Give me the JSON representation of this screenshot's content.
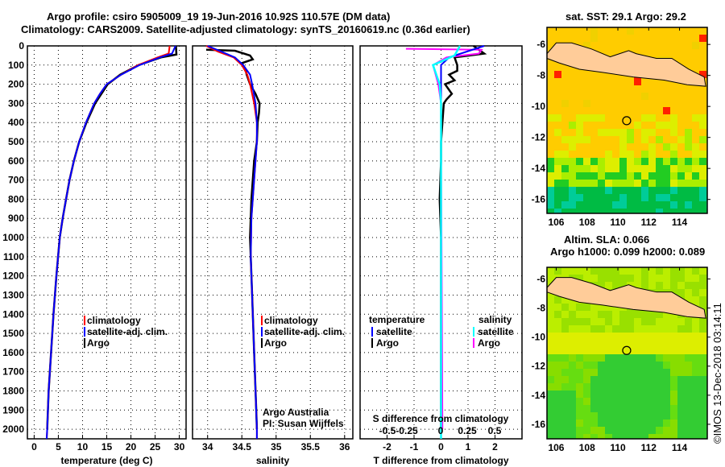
{
  "title_line1": "Argo profile: csiro 5905009_19 19-Jun-2016 10.92S 110.57E (DM data)",
  "title_line2": "Climatology: CARS2009. Satellite-adjusted climatology: synTS_20160619.nc (0.36d earlier)",
  "watermark": "©IMOS 13-Dec-2018 03:14:11",
  "colors": {
    "climatology": "#ff0000",
    "satellite": "#0000ff",
    "argo": "#000000",
    "sal_satellite": "#00ffff",
    "sal_argo": "#ff00ff",
    "land": "#ffcc99"
  },
  "chart_data": [
    {
      "type": "line",
      "xlabel": "temperature (deg C)",
      "ylabel": "",
      "xlim": [
        -1.4,
        31.4
      ],
      "ylim": [
        2050,
        0
      ],
      "xticks": [
        0,
        5,
        10,
        15,
        20,
        25,
        30
      ],
      "yticks": [
        0,
        100,
        200,
        300,
        400,
        500,
        600,
        700,
        800,
        900,
        1000,
        1100,
        1200,
        1300,
        1400,
        1500,
        1600,
        1700,
        1800,
        1900,
        2000
      ],
      "legend": [
        "climatology",
        "satellite-adj. clim.",
        "Argo"
      ],
      "series": [
        {
          "name": "climatology",
          "depth": [
            0,
            40,
            60,
            100,
            150,
            200,
            250,
            300,
            400,
            500,
            600,
            700,
            800,
            900,
            1000,
            1200,
            1400,
            1600,
            1800,
            2000,
            2050
          ],
          "values": [
            28,
            27.8,
            25.5,
            21.5,
            18,
            15,
            13.6,
            12.4,
            10.7,
            9.3,
            8.2,
            7.3,
            6.6,
            5.9,
            5.3,
            4.6,
            4.0,
            3.5,
            3.0,
            2.7,
            2.6
          ]
        },
        {
          "name": "satellite-adj. clim.",
          "depth": [
            0,
            40,
            60,
            100,
            150,
            200,
            250,
            300,
            400,
            500,
            600,
            700,
            800,
            900,
            1000,
            1200,
            1400,
            1600,
            1800,
            2000,
            2050
          ],
          "values": [
            29.2,
            28.5,
            26,
            21.8,
            18,
            15,
            13.6,
            12.4,
            10.7,
            9.3,
            8.2,
            7.3,
            6.6,
            5.9,
            5.3,
            4.6,
            4.0,
            3.5,
            3.0,
            2.7,
            2.6
          ]
        },
        {
          "name": "Argo",
          "depth": [
            0,
            45,
            60,
            100,
            150,
            200,
            250,
            300,
            400,
            500,
            600,
            700,
            800,
            900,
            1000,
            1200,
            1400,
            1600,
            1800,
            2000
          ],
          "values": [
            29.3,
            29.4,
            26.2,
            21.6,
            17.8,
            15.2,
            13.9,
            12.6,
            10.8,
            9.3,
            8.2,
            7.3,
            6.6,
            5.9,
            5.3,
            4.6,
            4.0,
            3.5,
            3.0,
            2.7
          ]
        }
      ]
    },
    {
      "type": "line",
      "xlabel": "salinity",
      "xlim": [
        33.78,
        36.12
      ],
      "ylim": [
        2050,
        0
      ],
      "xticks": [
        34,
        34.5,
        35,
        35.5,
        36
      ],
      "legend": [
        "climatology",
        "satellite-adj. clim.",
        "Argo"
      ],
      "credit": [
        "Argo Australia",
        "PI: Susan Wijffels"
      ],
      "series": [
        {
          "name": "climatology",
          "depth": [
            0,
            30,
            60,
            100,
            150,
            200,
            300,
            400,
            500,
            700,
            900,
            1100,
            1400,
            1700,
            2000,
            2050
          ],
          "values": [
            33.98,
            34.15,
            34.38,
            34.5,
            34.58,
            34.62,
            34.68,
            34.72,
            34.72,
            34.68,
            34.64,
            34.63,
            34.66,
            34.69,
            34.72,
            34.72
          ]
        },
        {
          "name": "satellite-adj. clim.",
          "depth": [
            0,
            30,
            60,
            100,
            150,
            200,
            300,
            400,
            500,
            700,
            900,
            1100,
            1400,
            1700,
            2000,
            2050
          ],
          "values": [
            34.0,
            34.2,
            34.4,
            34.52,
            34.62,
            34.65,
            34.7,
            34.72,
            34.72,
            34.68,
            34.64,
            34.63,
            34.66,
            34.69,
            34.72,
            34.72
          ]
        },
        {
          "name": "Argo",
          "depth": [
            20,
            25,
            50,
            70,
            90,
            120,
            150,
            200,
            250,
            300,
            350,
            400,
            500,
            600,
            800,
            1000,
            1300,
            1600,
            1900,
            2000
          ],
          "values": [
            33.98,
            34.4,
            34.62,
            34.66,
            34.5,
            34.55,
            34.57,
            34.62,
            34.7,
            34.76,
            34.75,
            34.73,
            34.72,
            34.68,
            34.64,
            34.62,
            34.65,
            34.68,
            34.71,
            34.72
          ]
        }
      ]
    },
    {
      "type": "line",
      "xlabel": "T difference from climatology",
      "xlabel2": "S difference from climatology",
      "xlim": [
        -3,
        3
      ],
      "ylim": [
        2050,
        0
      ],
      "xticks": [
        -2,
        -1,
        0,
        1,
        2
      ],
      "xticks2": [
        "-0.5",
        "-0.25",
        "0",
        "0.25",
        "0.5"
      ],
      "legend_t": {
        "title": "temperature",
        "items": [
          "satellite",
          "Argo"
        ]
      },
      "legend_s": {
        "title": "salinity",
        "items": [
          "satellite",
          "Argo"
        ]
      },
      "series": [
        {
          "name": "T satellite",
          "depth": [
            0,
            60,
            100,
            200,
            300,
            400,
            500,
            700,
            1000,
            2050
          ],
          "values": [
            1.6,
            0.3,
            0,
            0,
            0,
            0,
            0,
            0,
            0,
            0
          ]
        },
        {
          "name": "T Argo",
          "depth": [
            0,
            40,
            60,
            100,
            130,
            150,
            180,
            200,
            250,
            280,
            300,
            400,
            500,
            600,
            800,
            1000,
            1500,
            2000
          ],
          "values": [
            1.2,
            1.6,
            0.5,
            0.6,
            0.6,
            0.3,
            0.5,
            0.15,
            0.4,
            0.2,
            0.1,
            0.05,
            0,
            0.0,
            -0.05,
            0,
            0,
            0
          ]
        },
        {
          "name": "S satellite",
          "depth": [
            0,
            50,
            100,
            200,
            300,
            500,
            2050
          ],
          "values": [
            0.7,
            0.5,
            -0.3,
            -0.05,
            0,
            0,
            0
          ]
        },
        {
          "name": "S Argo",
          "depth": [
            15,
            20,
            40,
            60,
            100,
            150,
            200,
            300,
            500,
            2000
          ],
          "values": [
            -1.3,
            1.5,
            1.4,
            0.2,
            -0.3,
            -0.2,
            -0.1,
            0,
            0,
            0.05
          ]
        }
      ]
    },
    {
      "type": "heatmap",
      "title": "sat. SST: 29.1 Argo: 29.2",
      "xticks": [
        106,
        108,
        110,
        112,
        114
      ],
      "yticks": [
        -6,
        -8,
        -10,
        -12,
        -14,
        -16
      ],
      "xlim": [
        105.4,
        115.8
      ],
      "ylim": [
        -16.9,
        -4.9
      ],
      "argo_position": [
        110.57,
        -10.92
      ]
    },
    {
      "type": "heatmap",
      "title": "Altim. SLA: 0.066",
      "subtitle": "Argo h1000: 0.099 h2000: 0.089",
      "xticks": [
        106,
        108,
        110,
        112,
        114
      ],
      "yticks": [
        -6,
        -8,
        -10,
        -12,
        -14,
        -16
      ],
      "xlim": [
        105.4,
        115.8
      ],
      "ylim": [
        -17,
        -5.2
      ],
      "argo_position": [
        110.57,
        -10.92
      ]
    }
  ]
}
